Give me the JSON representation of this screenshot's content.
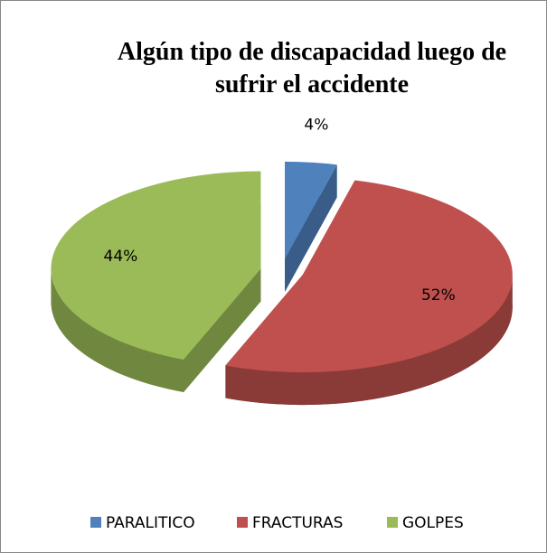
{
  "chart_data": {
    "type": "pie3d",
    "title": "Algún tipo de discapacidad luego de sufrir el accidente",
    "categories": [
      "PARALITICO",
      "FRACTURAS",
      "GOLPES"
    ],
    "values": [
      4,
      52,
      44
    ],
    "value_labels": [
      "4%",
      "52%",
      "44%"
    ],
    "colors": [
      "#4f81bd",
      "#c0504d",
      "#9bbb59"
    ],
    "legend": "bottom"
  }
}
